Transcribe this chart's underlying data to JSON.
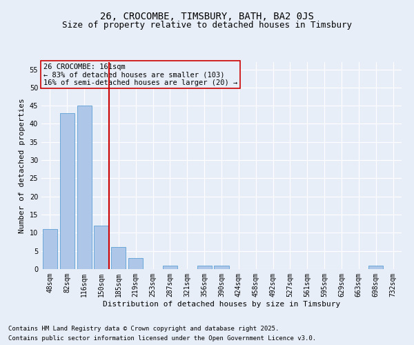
{
  "title1": "26, CROCOMBE, TIMSBURY, BATH, BA2 0JS",
  "title2": "Size of property relative to detached houses in Timsbury",
  "xlabel": "Distribution of detached houses by size in Timsbury",
  "ylabel": "Number of detached properties",
  "categories": [
    "48sqm",
    "82sqm",
    "116sqm",
    "150sqm",
    "185sqm",
    "219sqm",
    "253sqm",
    "287sqm",
    "321sqm",
    "356sqm",
    "390sqm",
    "424sqm",
    "458sqm",
    "492sqm",
    "527sqm",
    "561sqm",
    "595sqm",
    "629sqm",
    "663sqm",
    "698sqm",
    "732sqm"
  ],
  "values": [
    11,
    43,
    45,
    12,
    6,
    3,
    0,
    1,
    0,
    1,
    1,
    0,
    0,
    0,
    0,
    0,
    0,
    0,
    0,
    1,
    0
  ],
  "bar_color": "#aec6e8",
  "bar_edge_color": "#5a9fd4",
  "vline_color": "#cc0000",
  "ylim": [
    0,
    57
  ],
  "yticks": [
    0,
    5,
    10,
    15,
    20,
    25,
    30,
    35,
    40,
    45,
    50,
    55
  ],
  "annotation_line1": "26 CROCOMBE: 161sqm",
  "annotation_line2": "← 83% of detached houses are smaller (103)",
  "annotation_line3": "16% of semi-detached houses are larger (20) →",
  "annotation_box_color": "#cc0000",
  "bg_color": "#e8eef8",
  "footer1": "Contains HM Land Registry data © Crown copyright and database right 2025.",
  "footer2": "Contains public sector information licensed under the Open Government Licence v3.0.",
  "title_fontsize": 10,
  "subtitle_fontsize": 9,
  "axis_label_fontsize": 8,
  "tick_fontsize": 7,
  "annotation_fontsize": 7.5,
  "footer_fontsize": 6.5,
  "grid_color": "#ffffff"
}
